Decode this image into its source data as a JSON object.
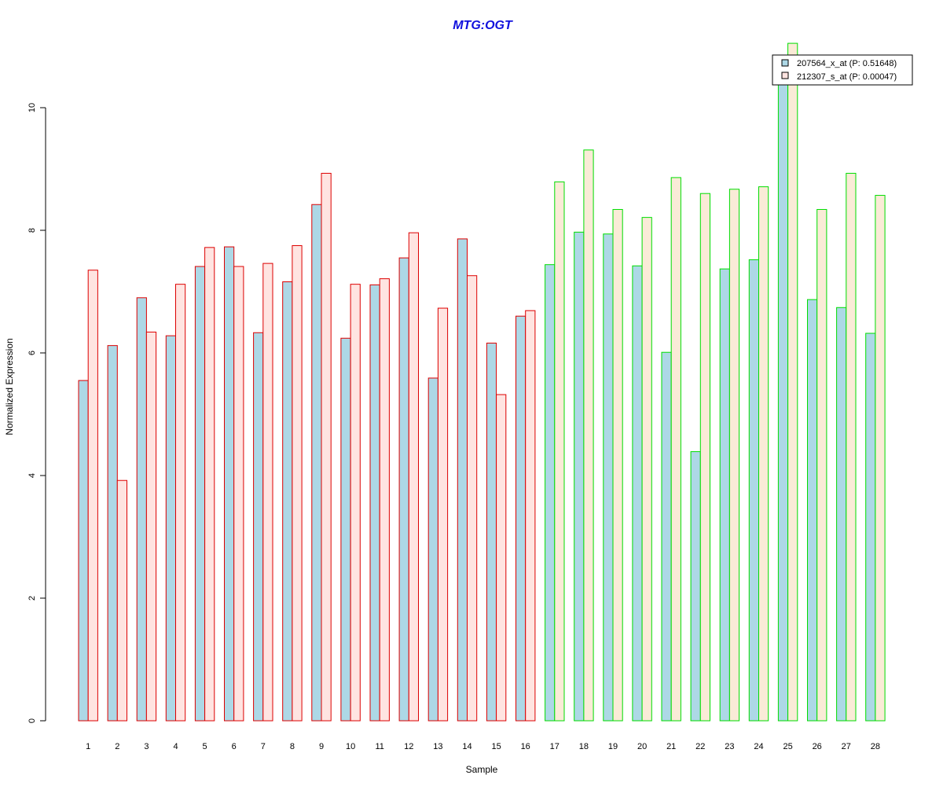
{
  "colors": {
    "title": "#1010dd",
    "series_fill": [
      "#add8e6",
      "#ffe4e1"
    ],
    "series_fill_second_group": [
      "#add8e6",
      "#faebd7"
    ],
    "group_border": [
      "#dd0000",
      "#00dd00"
    ]
  },
  "chart_data": {
    "type": "bar",
    "title": "MTG:OGT",
    "xlabel": "Sample",
    "ylabel": "Normalized Expression",
    "ylim": [
      0,
      11
    ],
    "yticks": [
      0,
      2,
      4,
      6,
      8,
      10
    ],
    "grid": false,
    "legend_position": "top-right",
    "categories": [
      "1",
      "2",
      "3",
      "4",
      "5",
      "6",
      "7",
      "8",
      "9",
      "10",
      "11",
      "12",
      "13",
      "14",
      "15",
      "16",
      "17",
      "18",
      "19",
      "20",
      "21",
      "22",
      "23",
      "24",
      "25",
      "26",
      "27",
      "28"
    ],
    "group_of_category": [
      0,
      0,
      0,
      0,
      0,
      0,
      0,
      0,
      0,
      0,
      0,
      0,
      0,
      0,
      0,
      0,
      1,
      1,
      1,
      1,
      1,
      1,
      1,
      1,
      1,
      1,
      1,
      1
    ],
    "series": [
      {
        "name": "207564_x_at (P: 0.51648)",
        "values": [
          5.55,
          6.12,
          6.9,
          6.28,
          7.41,
          7.73,
          6.33,
          7.16,
          8.42,
          6.24,
          7.11,
          7.55,
          5.59,
          7.86,
          6.16,
          6.6,
          7.44,
          7.97,
          7.94,
          7.42,
          6.01,
          4.39,
          7.37,
          7.52,
          10.5,
          6.87,
          6.74,
          6.32
        ]
      },
      {
        "name": "212307_s_at (P: 0.00047)",
        "values": [
          7.35,
          3.92,
          6.34,
          7.12,
          7.72,
          7.41,
          7.46,
          7.75,
          8.93,
          7.12,
          7.21,
          7.96,
          6.73,
          7.26,
          5.32,
          6.69,
          8.79,
          9.31,
          8.34,
          8.21,
          8.86,
          8.6,
          8.67,
          8.71,
          11.05,
          8.34,
          8.93,
          8.57
        ]
      }
    ]
  }
}
